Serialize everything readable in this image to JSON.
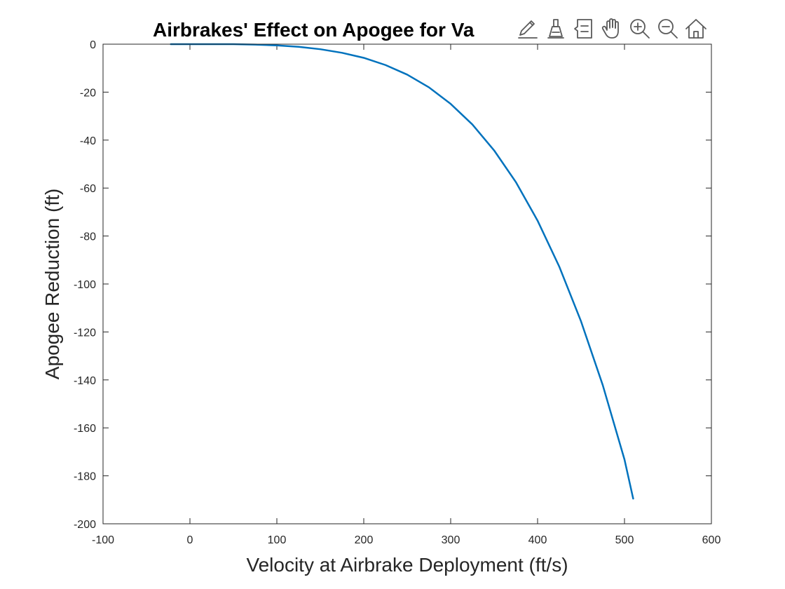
{
  "chart_data": {
    "type": "line",
    "title": "Airbrakes' Effect on Apogee for Va",
    "xlabel": "Velocity at Airbrake Deployment (ft/s)",
    "ylabel": "Apogee Reduction (ft)",
    "xlim": [
      -100,
      600
    ],
    "ylim": [
      -200,
      0
    ],
    "xticks": [
      "-100",
      "0",
      "100",
      "200",
      "300",
      "400",
      "500",
      "600"
    ],
    "yticks": [
      "0",
      "-20",
      "-40",
      "-60",
      "-80",
      "-100",
      "-120",
      "-140",
      "-160",
      "-180",
      "-200"
    ],
    "grid": false,
    "series": [
      {
        "color": "#0072BD",
        "x": [
          -22,
          0,
          25,
          50,
          75,
          100,
          125,
          150,
          175,
          200,
          225,
          250,
          275,
          300,
          325,
          350,
          375,
          400,
          425,
          450,
          475,
          500,
          510
        ],
        "y": [
          0,
          0,
          0,
          0,
          -0.2,
          -0.5,
          -1.1,
          -2.1,
          -3.6,
          -5.7,
          -8.7,
          -12.7,
          -18.0,
          -24.9,
          -33.5,
          -44.3,
          -57.5,
          -73.6,
          -92.8,
          -115.6,
          -142.2,
          -173.2,
          -189.5
        ]
      }
    ]
  },
  "toolbar": {
    "buttons": [
      {
        "name": "edit-icon"
      },
      {
        "name": "brush-icon"
      },
      {
        "name": "data-tips-icon"
      },
      {
        "name": "pan-hand-icon"
      },
      {
        "name": "zoom-in-icon"
      },
      {
        "name": "zoom-out-icon"
      },
      {
        "name": "home-icon"
      }
    ]
  }
}
